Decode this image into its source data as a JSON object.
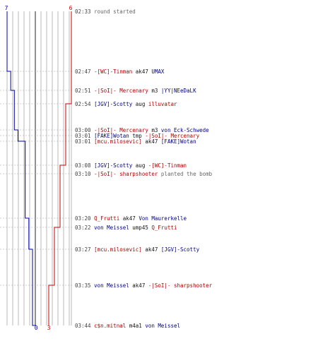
{
  "scores": {
    "blue_start": "7",
    "red_start": "6",
    "blue_end": "0",
    "red_end": "3"
  },
  "colors": {
    "ct": "#0000b0",
    "t": "#cc0000",
    "grid": "#a8a8a8",
    "event_line": "#c0c0c0"
  },
  "events": [
    {
      "time": "02:33",
      "parts": [
        {
          "text": "round started",
          "kind": "ev"
        }
      ]
    },
    {
      "time": "02:47",
      "parts": [
        {
          "text": "-[WC]-Tinman",
          "kind": "t"
        },
        {
          "text": " ak47 ",
          "kind": "txt"
        },
        {
          "text": "UMAX",
          "kind": "ct"
        }
      ]
    },
    {
      "time": "02:51",
      "parts": [
        {
          "text": "-|SoI|- Mercenary",
          "kind": "t"
        },
        {
          "text": " m3 ",
          "kind": "txt"
        },
        {
          "text": "|YY|NEeDaLK",
          "kind": "ct"
        }
      ]
    },
    {
      "time": "02:54",
      "parts": [
        {
          "text": "[JGV]-Scotty",
          "kind": "ct"
        },
        {
          "text": " aug ",
          "kind": "txt"
        },
        {
          "text": "illuvatar",
          "kind": "t"
        }
      ]
    },
    {
      "time": "03:00",
      "parts": [
        {
          "text": "-|SoI|- Mercenary",
          "kind": "t"
        },
        {
          "text": " m3 ",
          "kind": "txt"
        },
        {
          "text": "von Eck-Schwede",
          "kind": "ct"
        }
      ]
    },
    {
      "time": "03:01",
      "parts": [
        {
          "text": "[FAKE]Wotan",
          "kind": "ct"
        },
        {
          "text": " tmp ",
          "kind": "txt"
        },
        {
          "text": "-|SoI|- Mercenary",
          "kind": "t"
        }
      ]
    },
    {
      "time": "03:01",
      "parts": [
        {
          "text": "[mcu.milosevic]",
          "kind": "t"
        },
        {
          "text": " ak47 ",
          "kind": "txt"
        },
        {
          "text": "[FAKE]Wotan",
          "kind": "ct"
        }
      ]
    },
    {
      "time": "03:08",
      "parts": [
        {
          "text": "[JGV]-Scotty",
          "kind": "ct"
        },
        {
          "text": " aug ",
          "kind": "txt"
        },
        {
          "text": "-[WC]-Tinman",
          "kind": "t"
        }
      ]
    },
    {
      "time": "03:10",
      "parts": [
        {
          "text": "-|SoI|- sharpshooter",
          "kind": "t"
        },
        {
          "text": " planted the bomb",
          "kind": "ev"
        }
      ]
    },
    {
      "time": "03:20",
      "parts": [
        {
          "text": "Q_Frutti",
          "kind": "t"
        },
        {
          "text": " ak47 ",
          "kind": "txt"
        },
        {
          "text": "Von Maurerkelle",
          "kind": "ct"
        }
      ]
    },
    {
      "time": "03:22",
      "parts": [
        {
          "text": "von Meissel",
          "kind": "ct"
        },
        {
          "text": " ump45 ",
          "kind": "txt"
        },
        {
          "text": "Q_Frutti",
          "kind": "t"
        }
      ]
    },
    {
      "time": "03:27",
      "parts": [
        {
          "text": "[mcu.milosevic]",
          "kind": "t"
        },
        {
          "text": " ak47 ",
          "kind": "txt"
        },
        {
          "text": "[JGV]-Scotty",
          "kind": "ct"
        }
      ]
    },
    {
      "time": "03:35",
      "parts": [
        {
          "text": "von Meissel",
          "kind": "ct"
        },
        {
          "text": " ak47 ",
          "kind": "txt"
        },
        {
          "text": "-|SoI|- sharpshooter",
          "kind": "t"
        }
      ]
    },
    {
      "time": "03:44",
      "parts": [
        {
          "text": "c$n.mitnal",
          "kind": "t"
        },
        {
          "text": " m4a1 ",
          "kind": "txt"
        },
        {
          "text": "von Meissel",
          "kind": "ct"
        }
      ]
    }
  ]
}
